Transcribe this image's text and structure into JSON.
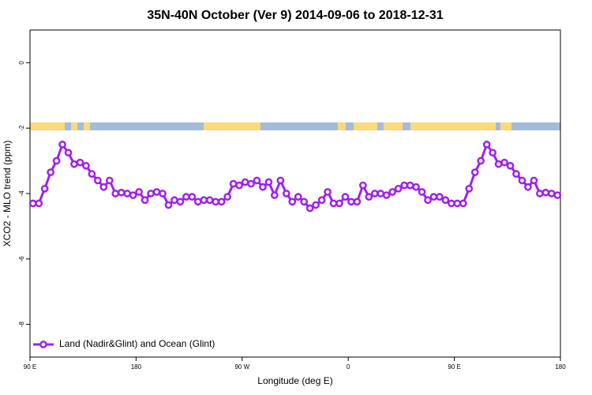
{
  "chart_data": {
    "type": "line",
    "title": "35N-40N October (Ver 9)   2014-09-06 to 2018-12-31",
    "x_label": "Longitude (deg E)",
    "y_label": "XCO2 - MLO trend (ppm)",
    "xlim": [
      90,
      540
    ],
    "xticks": [
      {
        "value": 90,
        "label": "90 E"
      },
      {
        "value": 180,
        "label": "180"
      },
      {
        "value": 270,
        "label": "90 W"
      },
      {
        "value": 360,
        "label": "0"
      },
      {
        "value": 450,
        "label": "90 E"
      },
      {
        "value": 540,
        "label": "180"
      }
    ],
    "ylim": [
      -9,
      1
    ],
    "yticks": [
      0,
      -2,
      -4,
      -6,
      -8
    ],
    "legend": "bottom-left",
    "x": [
      92.5,
      97.5,
      102.5,
      107.5,
      112.5,
      117.5,
      122.5,
      127.5,
      132.5,
      137.5,
      142.5,
      147.5,
      152.5,
      157.5,
      162.5,
      167.5,
      172.5,
      177.5,
      182.5,
      187.5,
      192.5,
      197.5,
      202.5,
      207.5,
      212.5,
      217.5,
      222.5,
      227.5,
      232.5,
      237.5,
      242.5,
      247.5,
      252.5,
      257.5,
      262.5,
      267.5,
      272.5,
      277.5,
      282.5,
      287.5,
      292.5,
      297.5,
      302.5,
      307.5,
      312.5,
      317.5,
      322.5,
      327.5,
      332.5,
      337.5,
      342.5,
      347.5,
      352.5,
      357.5,
      362.5,
      367.5,
      372.5,
      377.5,
      382.5,
      387.5,
      392.5,
      397.5,
      402.5,
      407.5,
      412.5,
      417.5,
      422.5,
      427.5,
      432.5,
      437.5,
      442.5,
      447.5,
      452.5,
      457.5,
      462.5,
      467.5,
      472.5,
      477.5,
      482.5,
      487.5,
      492.5,
      497.5,
      502.5,
      507.5,
      512.5,
      517.5,
      522.5,
      527.5,
      532.5,
      537.5
    ],
    "series": [
      {
        "name": "Land (Nadir&Glint) and Ocean (Glint)",
        "color": "#a020f0",
        "values": [
          -4.3,
          -4.3,
          -3.85,
          -3.35,
          -3.0,
          -2.5,
          -2.75,
          -3.1,
          -3.05,
          -3.15,
          -3.4,
          -3.6,
          -3.8,
          -3.6,
          -4.0,
          -3.97,
          -4.0,
          -4.05,
          -3.95,
          -4.2,
          -4.0,
          -3.95,
          -4.0,
          -4.35,
          -4.2,
          -4.25,
          -4.1,
          -4.1,
          -4.25,
          -4.2,
          -4.2,
          -4.25,
          -4.25,
          -4.1,
          -3.7,
          -3.75,
          -3.65,
          -3.7,
          -3.6,
          -3.8,
          -3.65,
          -4.05,
          -3.6,
          -4.0,
          -4.25,
          -4.1,
          -4.25,
          -4.45,
          -4.35,
          -4.2,
          -3.95,
          -4.3,
          -4.3,
          -4.1,
          -4.25,
          -4.25,
          -3.75,
          -4.1,
          -4.0,
          -4.0,
          -4.05,
          -3.95,
          -3.85,
          -3.75,
          -3.75,
          -3.8,
          -3.95,
          -4.2,
          -4.1,
          -4.1,
          -4.2,
          -4.3,
          -4.3,
          -4.3,
          -3.85,
          -3.35,
          -3.0,
          -2.5,
          -2.75,
          -3.1,
          -3.05,
          -3.15,
          -3.4,
          -3.6,
          -3.8,
          -3.6,
          -4.0,
          -3.97,
          -4.0,
          -4.05
        ]
      }
    ]
  }
}
